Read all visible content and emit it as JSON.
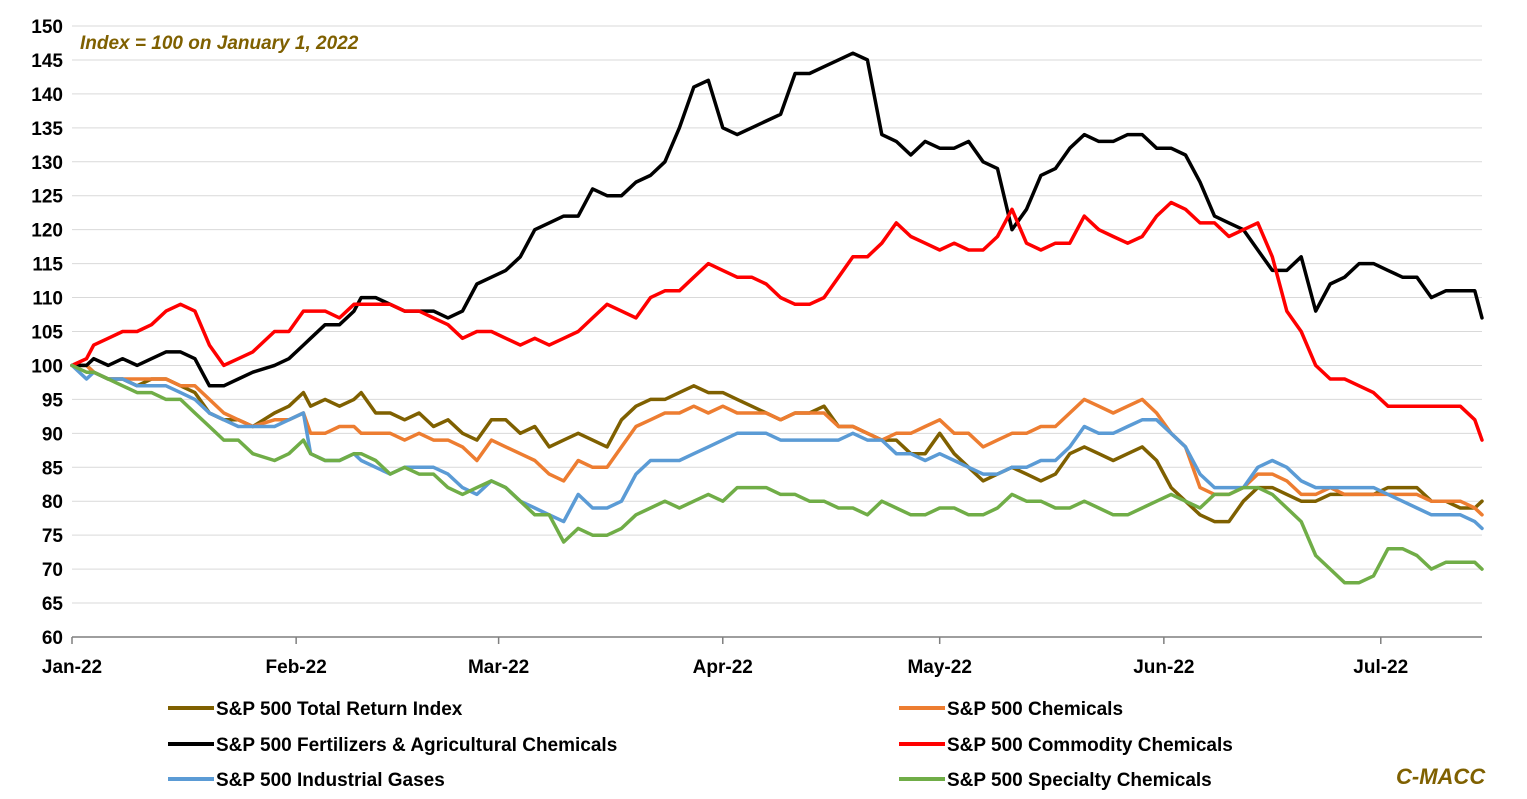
{
  "chart_data": {
    "type": "line",
    "title": "",
    "annotation": "Index = 100 on January 1, 2022",
    "source_label": "C-MACC",
    "xlabel": "",
    "ylabel": "",
    "ylim": [
      60,
      150
    ],
    "yticks": [
      60,
      65,
      70,
      75,
      80,
      85,
      90,
      95,
      100,
      105,
      110,
      115,
      120,
      125,
      130,
      135,
      140,
      145,
      150
    ],
    "x_tick_labels": [
      "Jan-22",
      "Feb-22",
      "Mar-22",
      "Apr-22",
      "May-22",
      "Jun-22",
      "Jul-22"
    ],
    "x_tick_day_index": [
      0,
      31,
      59,
      90,
      120,
      151,
      181
    ],
    "x_range_days": [
      0,
      195
    ],
    "grid": "horizontal",
    "legend_position": "bottom",
    "series": [
      {
        "name": "S&P 500 Total Return Index",
        "color": "#7f6000",
        "x": [
          0,
          2,
          3,
          5,
          7,
          9,
          11,
          13,
          15,
          17,
          19,
          21,
          23,
          25,
          28,
          30,
          32,
          33,
          35,
          37,
          39,
          40,
          42,
          44,
          46,
          48,
          50,
          52,
          54,
          56,
          58,
          60,
          62,
          64,
          66,
          68,
          70,
          72,
          74,
          76,
          78,
          80,
          82,
          84,
          86,
          88,
          90,
          92,
          94,
          96,
          98,
          100,
          102,
          104,
          106,
          108,
          110,
          112,
          114,
          116,
          118,
          120,
          122,
          124,
          126,
          128,
          130,
          132,
          134,
          136,
          138,
          140,
          142,
          144,
          146,
          148,
          150,
          152,
          154,
          156,
          158,
          160,
          162,
          164,
          166,
          168,
          170,
          172,
          174,
          176,
          178,
          180,
          182,
          184,
          186,
          188,
          190,
          192,
          194,
          195
        ],
        "values": [
          100,
          100,
          99,
          98,
          98,
          97,
          98,
          98,
          97,
          96,
          93,
          92,
          92,
          91,
          93,
          94,
          96,
          94,
          95,
          94,
          95,
          96,
          93,
          93,
          92,
          93,
          91,
          92,
          90,
          89,
          92,
          92,
          90,
          91,
          88,
          89,
          90,
          89,
          88,
          92,
          94,
          95,
          95,
          96,
          97,
          96,
          96,
          95,
          94,
          93,
          92,
          93,
          93,
          94,
          91,
          91,
          90,
          89,
          89,
          87,
          87,
          90,
          87,
          85,
          83,
          84,
          85,
          84,
          83,
          84,
          87,
          88,
          87,
          86,
          87,
          88,
          86,
          82,
          80,
          78,
          77,
          77,
          80,
          82,
          82,
          81,
          80,
          80,
          81,
          81,
          81,
          81,
          82,
          82,
          82,
          80,
          80,
          79,
          79,
          80
        ]
      },
      {
        "name": "S&P 500 Chemicals",
        "color": "#ed7d31",
        "x": [
          0,
          2,
          3,
          5,
          7,
          9,
          11,
          13,
          15,
          17,
          19,
          21,
          23,
          25,
          28,
          30,
          32,
          33,
          35,
          37,
          39,
          40,
          42,
          44,
          46,
          48,
          50,
          52,
          54,
          56,
          58,
          60,
          62,
          64,
          66,
          68,
          70,
          72,
          74,
          76,
          78,
          80,
          82,
          84,
          86,
          88,
          90,
          92,
          94,
          96,
          98,
          100,
          102,
          104,
          106,
          108,
          110,
          112,
          114,
          116,
          118,
          120,
          122,
          124,
          126,
          128,
          130,
          132,
          134,
          136,
          138,
          140,
          142,
          144,
          146,
          148,
          150,
          152,
          154,
          156,
          158,
          160,
          162,
          164,
          166,
          168,
          170,
          172,
          174,
          176,
          178,
          180,
          182,
          184,
          186,
          188,
          190,
          192,
          194,
          195
        ],
        "values": [
          100,
          100,
          99,
          98,
          98,
          98,
          98,
          98,
          97,
          97,
          95,
          93,
          92,
          91,
          92,
          92,
          93,
          90,
          90,
          91,
          91,
          90,
          90,
          90,
          89,
          90,
          89,
          89,
          88,
          86,
          89,
          88,
          87,
          86,
          84,
          83,
          86,
          85,
          85,
          88,
          91,
          92,
          93,
          93,
          94,
          93,
          94,
          93,
          93,
          93,
          92,
          93,
          93,
          93,
          91,
          91,
          90,
          89,
          90,
          90,
          91,
          92,
          90,
          90,
          88,
          89,
          90,
          90,
          91,
          91,
          93,
          95,
          94,
          93,
          94,
          95,
          93,
          90,
          88,
          82,
          81,
          81,
          82,
          84,
          84,
          83,
          81,
          81,
          82,
          81,
          81,
          81,
          81,
          81,
          81,
          80,
          80,
          80,
          79,
          78
        ]
      },
      {
        "name": "S&P 500 Fertilizers & Agricultural Chemicals",
        "color": "#000000",
        "x": [
          0,
          2,
          3,
          5,
          7,
          9,
          11,
          13,
          15,
          17,
          19,
          21,
          23,
          25,
          28,
          30,
          32,
          33,
          35,
          37,
          39,
          40,
          42,
          44,
          46,
          48,
          50,
          52,
          54,
          56,
          58,
          60,
          62,
          64,
          66,
          68,
          70,
          72,
          74,
          76,
          78,
          80,
          82,
          84,
          86,
          88,
          90,
          92,
          94,
          96,
          98,
          100,
          102,
          104,
          106,
          108,
          110,
          112,
          114,
          116,
          118,
          120,
          122,
          124,
          126,
          128,
          130,
          132,
          134,
          136,
          138,
          140,
          142,
          144,
          146,
          148,
          150,
          152,
          154,
          156,
          158,
          160,
          162,
          164,
          166,
          168,
          170,
          172,
          174,
          176,
          178,
          180,
          182,
          184,
          186,
          188,
          190,
          192,
          194,
          195
        ],
        "values": [
          100,
          100,
          101,
          100,
          101,
          100,
          101,
          102,
          102,
          101,
          97,
          97,
          98,
          99,
          100,
          101,
          103,
          104,
          106,
          106,
          108,
          110,
          110,
          109,
          108,
          108,
          108,
          107,
          108,
          112,
          113,
          114,
          116,
          120,
          121,
          122,
          122,
          126,
          125,
          125,
          127,
          128,
          130,
          135,
          141,
          142,
          135,
          134,
          135,
          136,
          137,
          143,
          143,
          144,
          145,
          146,
          145,
          134,
          133,
          131,
          133,
          132,
          132,
          133,
          130,
          129,
          120,
          123,
          128,
          129,
          132,
          134,
          133,
          133,
          134,
          134,
          132,
          132,
          131,
          127,
          122,
          121,
          120,
          117,
          114,
          114,
          116,
          108,
          112,
          113,
          115,
          115,
          114,
          113,
          113,
          110,
          111,
          111,
          111,
          107
        ]
      },
      {
        "name": "S&P 500 Commodity Chemicals",
        "color": "#ff0000",
        "x": [
          0,
          2,
          3,
          5,
          7,
          9,
          11,
          13,
          15,
          17,
          19,
          21,
          23,
          25,
          28,
          30,
          32,
          33,
          35,
          37,
          39,
          40,
          42,
          44,
          46,
          48,
          50,
          52,
          54,
          56,
          58,
          60,
          62,
          64,
          66,
          68,
          70,
          72,
          74,
          76,
          78,
          80,
          82,
          84,
          86,
          88,
          90,
          92,
          94,
          96,
          98,
          100,
          102,
          104,
          106,
          108,
          110,
          112,
          114,
          116,
          118,
          120,
          122,
          124,
          126,
          128,
          130,
          132,
          134,
          136,
          138,
          140,
          142,
          144,
          146,
          148,
          150,
          152,
          154,
          156,
          158,
          160,
          162,
          164,
          166,
          168,
          170,
          172,
          174,
          176,
          178,
          180,
          182,
          184,
          186,
          188,
          190,
          192,
          194,
          195
        ],
        "values": [
          100,
          101,
          103,
          104,
          105,
          105,
          106,
          108,
          109,
          108,
          103,
          100,
          101,
          102,
          105,
          105,
          108,
          108,
          108,
          107,
          109,
          109,
          109,
          109,
          108,
          108,
          107,
          106,
          104,
          105,
          105,
          104,
          103,
          104,
          103,
          104,
          105,
          107,
          109,
          108,
          107,
          110,
          111,
          111,
          113,
          115,
          114,
          113,
          113,
          112,
          110,
          109,
          109,
          110,
          113,
          116,
          116,
          118,
          121,
          119,
          118,
          117,
          118,
          117,
          117,
          119,
          123,
          118,
          117,
          118,
          118,
          122,
          120,
          119,
          118,
          119,
          122,
          124,
          123,
          121,
          121,
          119,
          120,
          121,
          116,
          108,
          105,
          100,
          98,
          98,
          97,
          96,
          94,
          94,
          94,
          94,
          94,
          94,
          92,
          89
        ]
      },
      {
        "name": "S&P 500 Industrial Gases",
        "color": "#5b9bd5",
        "x": [
          0,
          2,
          3,
          5,
          7,
          9,
          11,
          13,
          15,
          17,
          19,
          21,
          23,
          25,
          28,
          30,
          32,
          33,
          35,
          37,
          39,
          40,
          42,
          44,
          46,
          48,
          50,
          52,
          54,
          56,
          58,
          60,
          62,
          64,
          66,
          68,
          70,
          72,
          74,
          76,
          78,
          80,
          82,
          84,
          86,
          88,
          90,
          92,
          94,
          96,
          98,
          100,
          102,
          104,
          106,
          108,
          110,
          112,
          114,
          116,
          118,
          120,
          122,
          124,
          126,
          128,
          130,
          132,
          134,
          136,
          138,
          140,
          142,
          144,
          146,
          148,
          150,
          152,
          154,
          156,
          158,
          160,
          162,
          164,
          166,
          168,
          170,
          172,
          174,
          176,
          178,
          180,
          182,
          184,
          186,
          188,
          190,
          192,
          194,
          195
        ],
        "values": [
          100,
          98,
          99,
          98,
          98,
          97,
          97,
          97,
          96,
          95,
          93,
          92,
          91,
          91,
          91,
          92,
          93,
          87,
          86,
          86,
          87,
          86,
          85,
          84,
          85,
          85,
          85,
          84,
          82,
          81,
          83,
          82,
          80,
          79,
          78,
          77,
          81,
          79,
          79,
          80,
          84,
          86,
          86,
          86,
          87,
          88,
          89,
          90,
          90,
          90,
          89,
          89,
          89,
          89,
          89,
          90,
          89,
          89,
          87,
          87,
          86,
          87,
          86,
          85,
          84,
          84,
          85,
          85,
          86,
          86,
          88,
          91,
          90,
          90,
          91,
          92,
          92,
          90,
          88,
          84,
          82,
          82,
          82,
          85,
          86,
          85,
          83,
          82,
          82,
          82,
          82,
          82,
          81,
          80,
          79,
          78,
          78,
          78,
          77,
          76
        ]
      },
      {
        "name": "S&P 500 Specialty Chemicals",
        "color": "#70ad47",
        "x": [
          0,
          2,
          3,
          5,
          7,
          9,
          11,
          13,
          15,
          17,
          19,
          21,
          23,
          25,
          28,
          30,
          32,
          33,
          35,
          37,
          39,
          40,
          42,
          44,
          46,
          48,
          50,
          52,
          54,
          56,
          58,
          60,
          62,
          64,
          66,
          68,
          70,
          72,
          74,
          76,
          78,
          80,
          82,
          84,
          86,
          88,
          90,
          92,
          94,
          96,
          98,
          100,
          102,
          104,
          106,
          108,
          110,
          112,
          114,
          116,
          118,
          120,
          122,
          124,
          126,
          128,
          130,
          132,
          134,
          136,
          138,
          140,
          142,
          144,
          146,
          148,
          150,
          152,
          154,
          156,
          158,
          160,
          162,
          164,
          166,
          168,
          170,
          172,
          174,
          176,
          178,
          180,
          182,
          184,
          186,
          188,
          190,
          192,
          194,
          195
        ],
        "values": [
          100,
          99,
          99,
          98,
          97,
          96,
          96,
          95,
          95,
          93,
          91,
          89,
          89,
          87,
          86,
          87,
          89,
          87,
          86,
          86,
          87,
          87,
          86,
          84,
          85,
          84,
          84,
          82,
          81,
          82,
          83,
          82,
          80,
          78,
          78,
          74,
          76,
          75,
          75,
          76,
          78,
          79,
          80,
          79,
          80,
          81,
          80,
          82,
          82,
          82,
          81,
          81,
          80,
          80,
          79,
          79,
          78,
          80,
          79,
          78,
          78,
          79,
          79,
          78,
          78,
          79,
          81,
          80,
          80,
          79,
          79,
          80,
          79,
          78,
          78,
          79,
          80,
          81,
          80,
          79,
          81,
          81,
          82,
          82,
          81,
          79,
          77,
          72,
          70,
          68,
          68,
          69,
          73,
          73,
          72,
          70,
          71,
          71,
          71,
          70
        ]
      }
    ]
  }
}
